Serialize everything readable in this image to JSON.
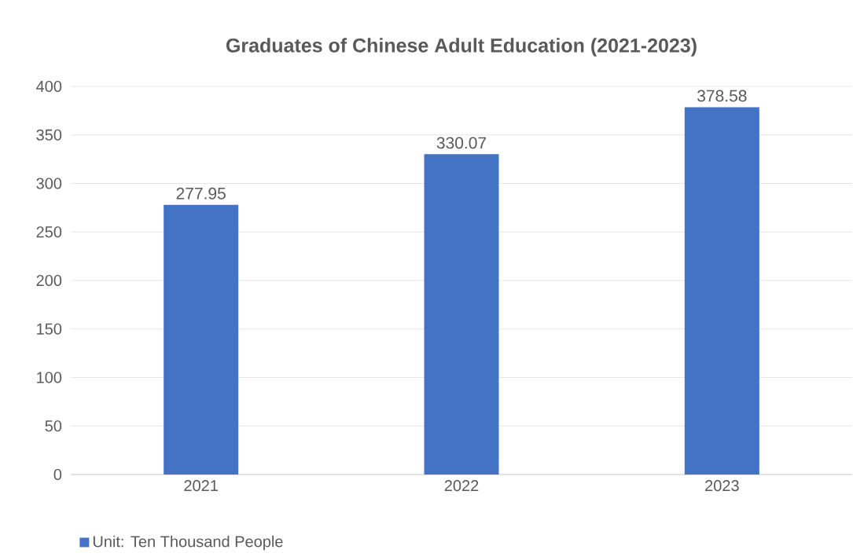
{
  "chart_data": {
    "type": "bar",
    "title": "Graduates of Chinese Adult Education (2021-2023)",
    "categories": [
      "2021",
      "2022",
      "2023"
    ],
    "series": [
      {
        "name": "Unit: Ten Thousand People",
        "color": "#4472c4",
        "values": [
          277.95,
          330.07,
          378.58
        ]
      }
    ],
    "ylim": [
      0,
      400
    ],
    "yticks": [
      0,
      50,
      100,
      150,
      200,
      250,
      300,
      350,
      400
    ],
    "grid": "y",
    "legend": "bottom left",
    "data_labels": true
  }
}
